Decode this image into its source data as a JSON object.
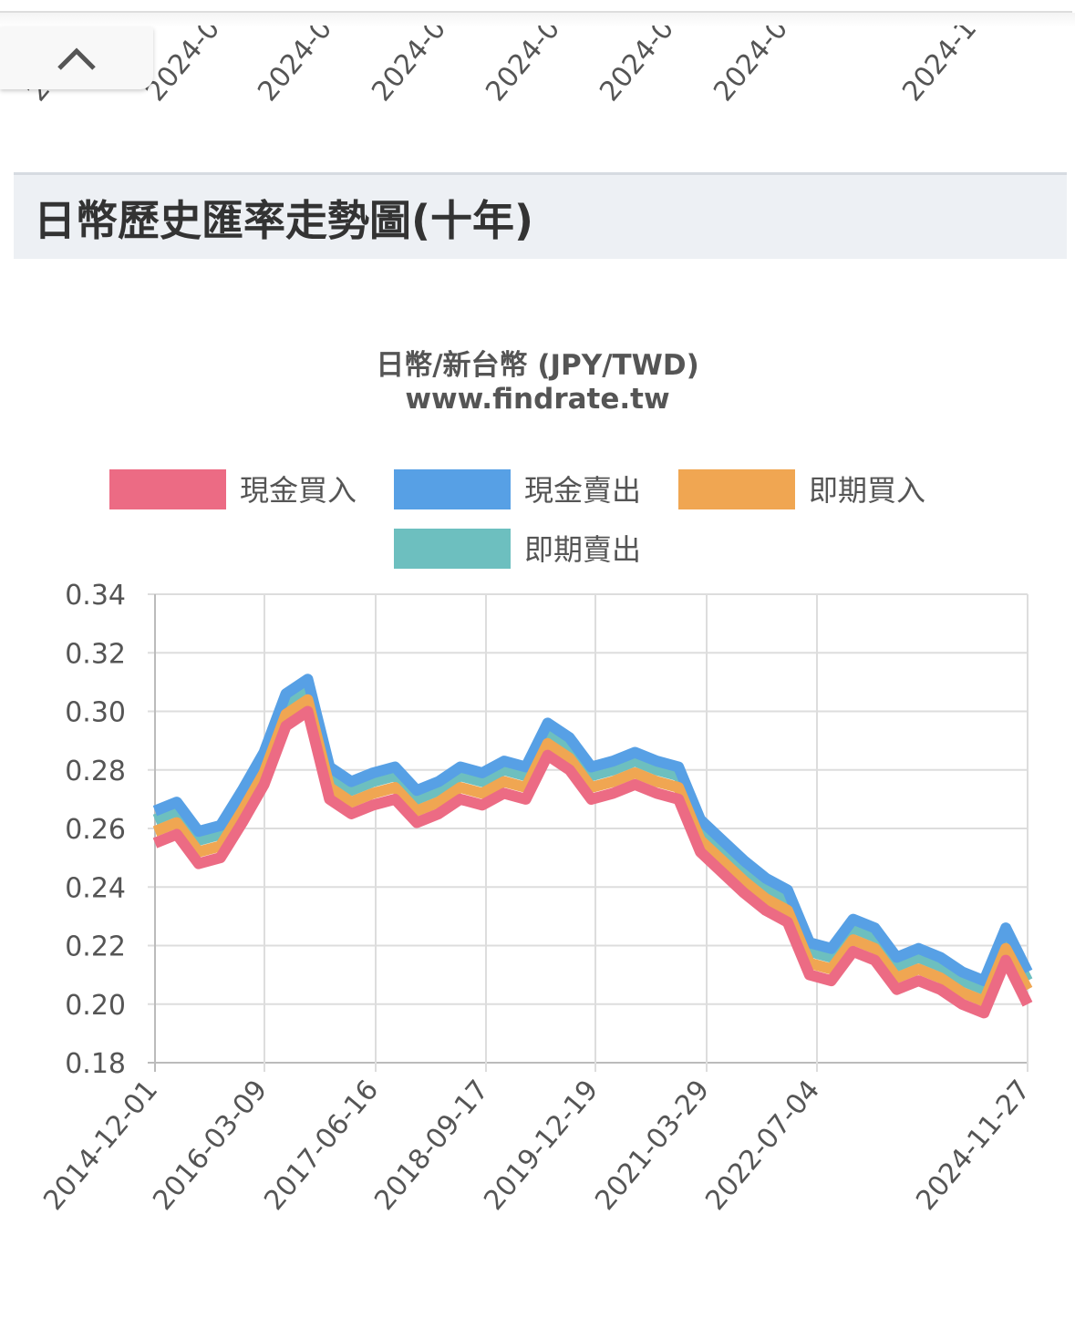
{
  "top_partial_labels": [
    "2",
    "2024-0",
    "2024-0",
    "2024-0",
    "2024-0",
    "2024-0",
    "2024-0",
    "2024-1"
  ],
  "section_title": "日幣歷史匯率走勢圖(十年)",
  "chart_data": {
    "type": "line",
    "title": "日幣/新台幣 (JPY/TWD)",
    "subtitle": "www.findrate.tw",
    "xlabel": "",
    "ylabel": "",
    "ylim": [
      0.18,
      0.34
    ],
    "yticks": [
      "0.34",
      "0.32",
      "0.30",
      "0.28",
      "0.26",
      "0.24",
      "0.22",
      "0.20",
      "0.18"
    ],
    "xticks": [
      "2014-12-01",
      "2016-03-09",
      "2017-06-16",
      "2018-09-17",
      "2019-12-19",
      "2021-03-29",
      "2022-07-04",
      "2024-11-27"
    ],
    "legend_position": "top",
    "grid": true,
    "series": [
      {
        "name": "現金買入",
        "color": "#ec6b84",
        "values": [
          0.255,
          0.258,
          0.248,
          0.25,
          0.262,
          0.275,
          0.295,
          0.3,
          0.27,
          0.265,
          0.268,
          0.27,
          0.262,
          0.265,
          0.27,
          0.268,
          0.272,
          0.27,
          0.285,
          0.28,
          0.27,
          0.272,
          0.275,
          0.272,
          0.27,
          0.252,
          0.245,
          0.238,
          0.232,
          0.228,
          0.21,
          0.208,
          0.218,
          0.215,
          0.205,
          0.208,
          0.205,
          0.2,
          0.197,
          0.215,
          0.2
        ]
      },
      {
        "name": "現金賣出",
        "color": "#57a0e5",
        "values": [
          0.266,
          0.269,
          0.259,
          0.261,
          0.273,
          0.286,
          0.306,
          0.311,
          0.281,
          0.276,
          0.279,
          0.281,
          0.273,
          0.276,
          0.281,
          0.279,
          0.283,
          0.281,
          0.296,
          0.291,
          0.281,
          0.283,
          0.286,
          0.283,
          0.281,
          0.263,
          0.256,
          0.249,
          0.243,
          0.239,
          0.221,
          0.219,
          0.229,
          0.226,
          0.216,
          0.219,
          0.216,
          0.211,
          0.208,
          0.226,
          0.211
        ]
      },
      {
        "name": "即期買入",
        "color": "#f0a652",
        "values": [
          0.259,
          0.262,
          0.252,
          0.254,
          0.266,
          0.279,
          0.299,
          0.304,
          0.274,
          0.269,
          0.272,
          0.274,
          0.266,
          0.269,
          0.274,
          0.272,
          0.276,
          0.274,
          0.289,
          0.284,
          0.274,
          0.276,
          0.279,
          0.276,
          0.274,
          0.256,
          0.249,
          0.242,
          0.236,
          0.232,
          0.214,
          0.212,
          0.222,
          0.219,
          0.209,
          0.212,
          0.209,
          0.204,
          0.201,
          0.219,
          0.205
        ]
      },
      {
        "name": "即期賣出",
        "color": "#6dbfbf",
        "values": [
          0.263,
          0.266,
          0.256,
          0.258,
          0.27,
          0.283,
          0.303,
          0.308,
          0.278,
          0.273,
          0.276,
          0.278,
          0.27,
          0.273,
          0.278,
          0.276,
          0.28,
          0.278,
          0.293,
          0.288,
          0.278,
          0.28,
          0.283,
          0.28,
          0.278,
          0.26,
          0.253,
          0.246,
          0.24,
          0.236,
          0.218,
          0.216,
          0.226,
          0.223,
          0.213,
          0.216,
          0.213,
          0.208,
          0.205,
          0.223,
          0.208
        ]
      }
    ]
  }
}
